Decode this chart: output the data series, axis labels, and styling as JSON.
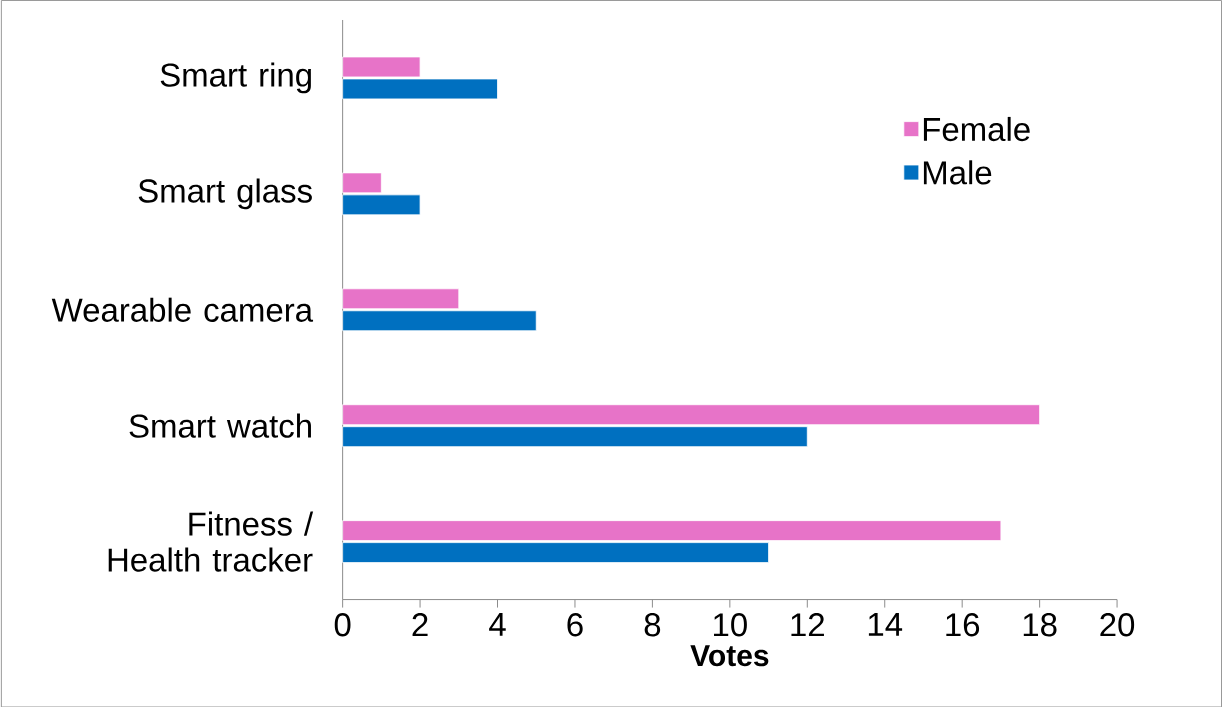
{
  "chart_data": {
    "type": "bar",
    "orientation": "horizontal",
    "xlabel": "Votes",
    "categories": [
      "Smart ring",
      "Smart glass",
      "Wearable camera",
      "Smart watch",
      "Fitness / Health tracker"
    ],
    "series": [
      {
        "name": "Female",
        "color": "#e773c8",
        "values": [
          2,
          1,
          3,
          18,
          17
        ]
      },
      {
        "name": "Male",
        "color": "#0070c0",
        "values": [
          4,
          2,
          5,
          12,
          11
        ]
      }
    ],
    "xlim": [
      0,
      20
    ],
    "xticks": [
      0,
      2,
      4,
      6,
      8,
      10,
      12,
      14,
      16,
      18,
      20
    ],
    "legend": "right"
  }
}
